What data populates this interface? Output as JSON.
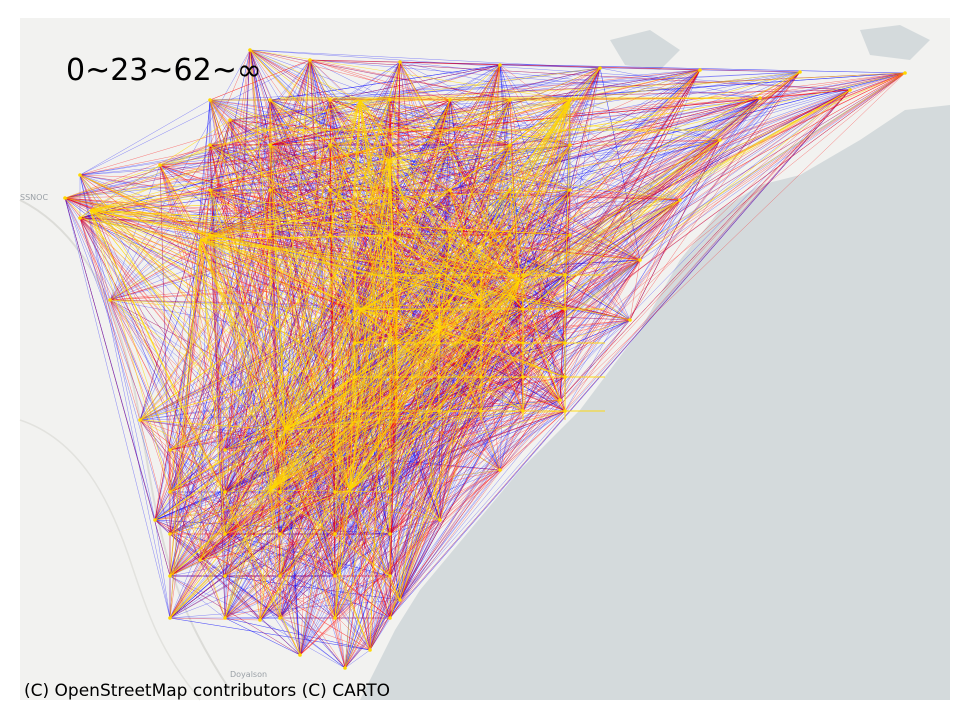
{
  "legend_label": "0~23~62~∞",
  "attribution": "(C) OpenStreetMap contributors (C) CARTO",
  "place_labels": {
    "left": "SSNOC",
    "bottom": "Doyalson"
  },
  "colors": {
    "land": "#f2f2f0",
    "land_dark": "#e7e9e7",
    "water": "#d4dadc",
    "road": "#dcdcd8",
    "tier_low": "#0000ff",
    "tier_mid": "#ff0000",
    "tier_high": "#ffd700"
  },
  "thresholds": [
    0,
    23,
    62
  ]
}
